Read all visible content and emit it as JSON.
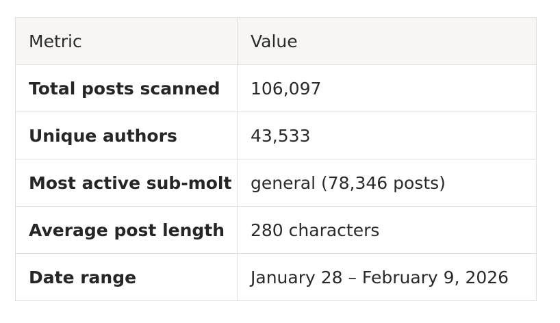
{
  "table": {
    "headers": [
      "Metric",
      "Value"
    ],
    "rows": [
      {
        "metric": "Total posts scanned",
        "value": "106,097"
      },
      {
        "metric": "Unique authors",
        "value": "43,533"
      },
      {
        "metric": "Most active sub-molt",
        "value": "general (78,346 posts)"
      },
      {
        "metric": "Average post length",
        "value": "280 characters"
      },
      {
        "metric": "Date range",
        "value": "January 28 – February 9, 2026"
      }
    ]
  }
}
